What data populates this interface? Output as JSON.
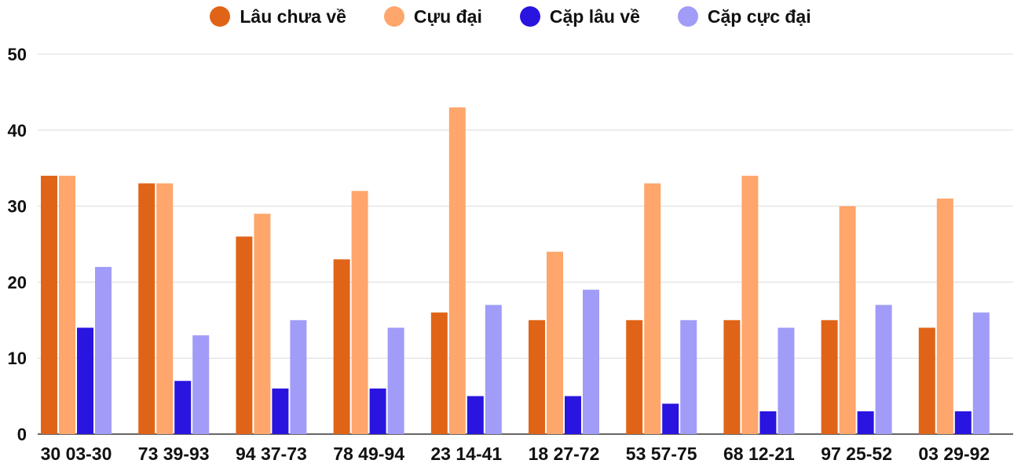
{
  "chart_data": {
    "type": "bar",
    "categories": [
      "30 03-30",
      "73 39-93",
      "94 37-73",
      "78 49-94",
      "23 14-41",
      "18 27-72",
      "53 57-75",
      "68 12-21",
      "97 25-52",
      "03 29-92"
    ],
    "series": [
      {
        "name": "Lâu chưa về",
        "color": "#e06418",
        "values": [
          34,
          33,
          26,
          23,
          16,
          15,
          15,
          15,
          15,
          14
        ]
      },
      {
        "name": "Cựu đại",
        "color": "#fea66c",
        "values": [
          34,
          33,
          29,
          32,
          43,
          24,
          33,
          34,
          30,
          31
        ]
      },
      {
        "name": "Cặp lâu về",
        "color": "#2a14e0",
        "values": [
          14,
          7,
          6,
          6,
          5,
          5,
          4,
          3,
          3,
          3
        ]
      },
      {
        "name": "Cặp cực đại",
        "color": "#a19cf8",
        "values": [
          22,
          13,
          15,
          14,
          17,
          19,
          15,
          14,
          17,
          16
        ]
      }
    ],
    "ylim": [
      0,
      50
    ],
    "yticks": [
      0,
      10,
      20,
      30,
      40,
      50
    ],
    "grid": true,
    "legend_position": "top-center"
  }
}
